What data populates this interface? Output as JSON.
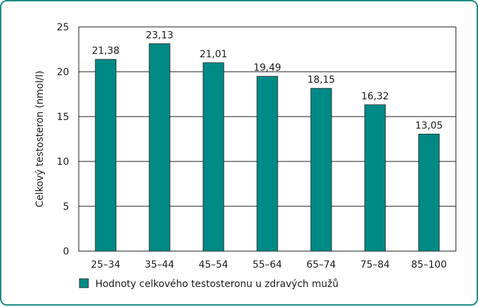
{
  "chart_data": {
    "type": "bar",
    "title": "",
    "xlabel": "",
    "ylabel": "Celkový testosteron (nmol/l)",
    "ylim": [
      0,
      25
    ],
    "yticks": [
      0,
      5,
      10,
      15,
      20,
      25
    ],
    "categories": [
      "25–34",
      "35–44",
      "45–54",
      "55–64",
      "65–74",
      "75–84",
      "85–100"
    ],
    "value_labels": [
      "21,38",
      "23,13",
      "21,01",
      "19,49",
      "18,15",
      "16,32",
      "13,05"
    ],
    "series": [
      {
        "name": "Hodnoty celkového testosteronu u zdravých mužů",
        "values": [
          21.38,
          23.13,
          21.01,
          19.49,
          18.15,
          16.32,
          13.05
        ],
        "color": "#008a86"
      }
    ],
    "grid": true,
    "legend": "bottom-left"
  }
}
